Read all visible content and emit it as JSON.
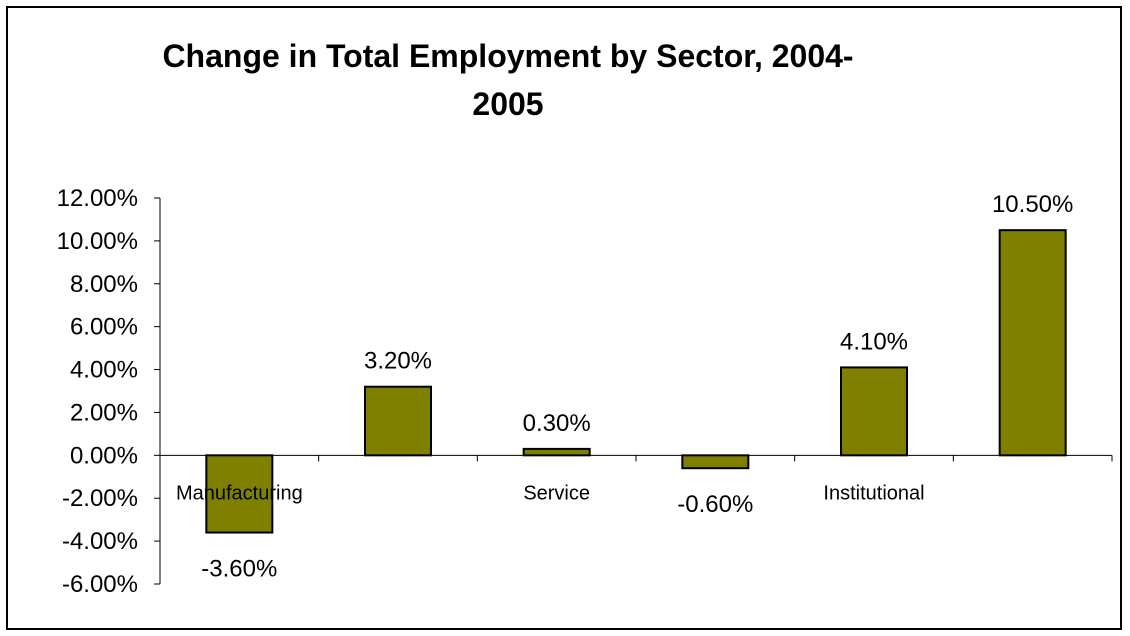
{
  "chart_data": {
    "type": "bar",
    "title": "Change in Total Employment by Sector, 2004-2005",
    "title_lines": [
      "Change in Total Employment by Sector, 2004-",
      "2005"
    ],
    "categories": [
      "Manufacturing",
      "",
      "Service",
      "",
      "Institutional",
      ""
    ],
    "values": [
      -3.6,
      3.2,
      0.3,
      -0.6,
      4.1,
      10.5
    ],
    "data_labels": [
      "-3.60%",
      "3.20%",
      "0.30%",
      "-0.60%",
      "4.10%",
      "10.50%"
    ],
    "ylim": [
      -6,
      12
    ],
    "yticks": [
      12,
      10,
      8,
      6,
      4,
      2,
      0,
      -2,
      -4,
      -6
    ],
    "ytick_labels": [
      "12.00%",
      "10.00%",
      "8.00%",
      "6.00%",
      "4.00%",
      "2.00%",
      "0.00%",
      "-2.00%",
      "-4.00%",
      "-6.00%"
    ],
    "xlabel": "",
    "ylabel": "",
    "grid": false,
    "legend": "none",
    "bar_color": "#808000",
    "bar_edge_color": "#000000"
  }
}
